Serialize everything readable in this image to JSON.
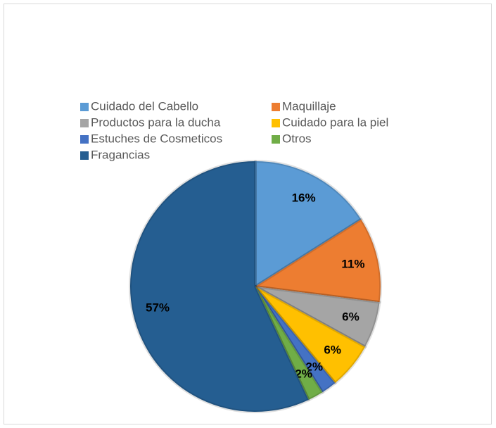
{
  "chart_data": {
    "type": "pie",
    "categories": [
      "Cuidado del Cabello",
      "Maquillaje",
      "Productos para la ducha",
      "Cuidado para la piel",
      "Estuches de Cosmeticos",
      "Otros",
      "Fragancias"
    ],
    "values": [
      16,
      11,
      6,
      6,
      2,
      2,
      57
    ],
    "value_labels": [
      "16%",
      "11%",
      "6%",
      "6%",
      "2%",
      "2%",
      "57%"
    ],
    "colors": [
      "#5b9bd5",
      "#ed7d31",
      "#a5a5a5",
      "#ffc000",
      "#4472c4",
      "#70ad47",
      "#255e91"
    ],
    "legend": "top"
  }
}
